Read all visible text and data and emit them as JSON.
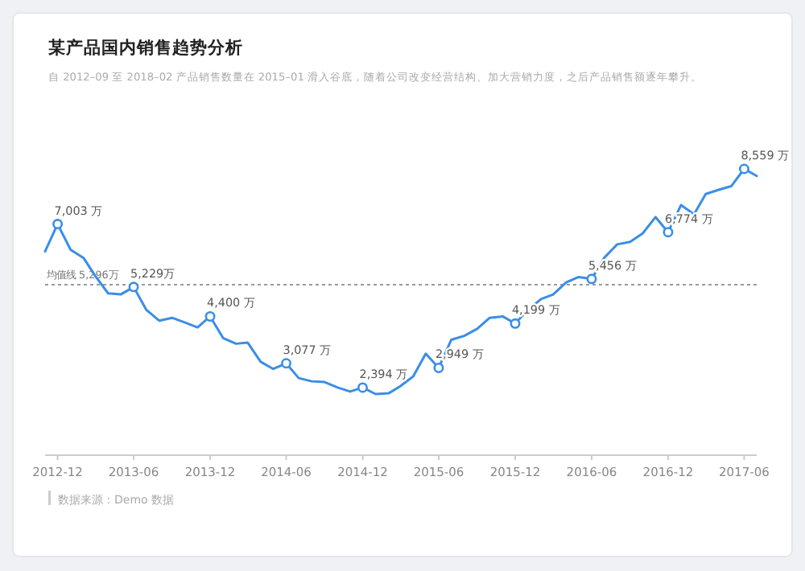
{
  "chart_data": {
    "type": "line",
    "title": "某产品国内销售趋势分析",
    "subtitle": "自 2012–09 至 2018–02 产品销售数量在 2015–01 滑入谷底，随着公司改变经营结构、加大营销力度，之后产品销售额逐年攀升。",
    "x": [
      "2012-11",
      "2012-12",
      "2013-01",
      "2013-02",
      "2013-03",
      "2013-04",
      "2013-05",
      "2013-06",
      "2013-07",
      "2013-08",
      "2013-09",
      "2013-10",
      "2013-11",
      "2013-12",
      "2014-01",
      "2014-02",
      "2014-03",
      "2014-04",
      "2014-05",
      "2014-06",
      "2014-07",
      "2014-08",
      "2014-09",
      "2014-10",
      "2014-11",
      "2014-12",
      "2015-01",
      "2015-02",
      "2015-03",
      "2015-04",
      "2015-05",
      "2015-06",
      "2015-07",
      "2015-08",
      "2015-09",
      "2015-10",
      "2015-11",
      "2015-12",
      "2016-01",
      "2016-02",
      "2016-03",
      "2016-04",
      "2016-05",
      "2016-06",
      "2016-07",
      "2016-08",
      "2016-09",
      "2016-10",
      "2016-11",
      "2016-12",
      "2017-01",
      "2017-02",
      "2017-03",
      "2017-04",
      "2017-05",
      "2017-06",
      "2017-07"
    ],
    "series": [
      {
        "color": "#3a8ee6",
        "values": [
          6230,
          7003,
          6280,
          6050,
          5540,
          5050,
          5020,
          5229,
          4590,
          4280,
          4360,
          4230,
          4090,
          4400,
          3790,
          3630,
          3660,
          3120,
          2920,
          3077,
          2660,
          2570,
          2550,
          2400,
          2280,
          2394,
          2210,
          2230,
          2430,
          2710,
          3350,
          2949,
          3740,
          3850,
          4050,
          4360,
          4400,
          4199,
          4590,
          4890,
          5020,
          5360,
          5510,
          5456,
          6050,
          6430,
          6500,
          6740,
          7200,
          6774,
          7540,
          7280,
          7850,
          7970,
          8070,
          8559,
          8360
        ],
        "value_labels": [
          null,
          "7,003 万",
          null,
          null,
          null,
          null,
          null,
          "5,229万",
          null,
          null,
          null,
          null,
          null,
          "4,400 万",
          null,
          null,
          null,
          null,
          null,
          "3,077 万",
          null,
          null,
          null,
          null,
          null,
          "2,394 万",
          null,
          null,
          null,
          null,
          null,
          "2,949 万",
          null,
          null,
          null,
          null,
          null,
          "4,199 万",
          null,
          null,
          null,
          null,
          null,
          "5,456 万",
          null,
          null,
          null,
          null,
          null,
          "6,774 万",
          null,
          null,
          null,
          null,
          null,
          "8,559 万",
          null
        ]
      }
    ],
    "xlim": [
      "2012-11",
      "2017-07"
    ],
    "xticks": [
      "2012-12",
      "2013-06",
      "2013-12",
      "2014-06",
      "2014-12",
      "2015-06",
      "2015-12",
      "2016-06",
      "2016-12",
      "2017-06"
    ],
    "ref_lines": [
      {
        "axis": "y",
        "value": 5296,
        "label": "均值线 5,296万",
        "color": "#999999",
        "line_style": "dotted"
      }
    ],
    "annotations": [
      "数据来源：Demo 数据"
    ],
    "tick_labels": "x",
    "grid": false,
    "line_style": "solid"
  }
}
